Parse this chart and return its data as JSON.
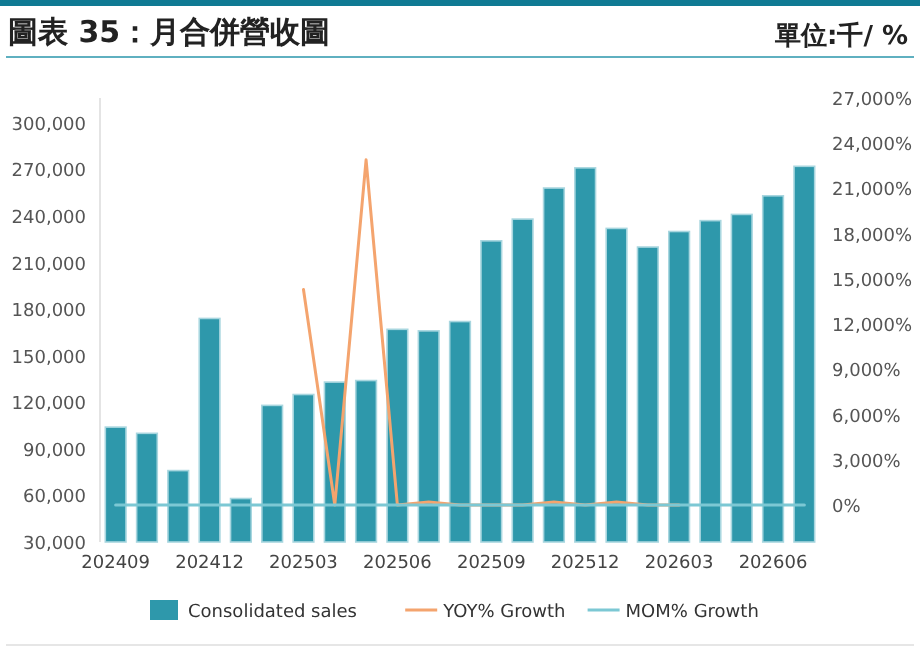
{
  "chart_data": {
    "type": "bar",
    "title": "圖表 35：月合併營收圖",
    "annotations": [
      "單位:千/ %"
    ],
    "categories": [
      "202409",
      null,
      null,
      "202412",
      null,
      null,
      "202503",
      null,
      null,
      "202506",
      null,
      null,
      "202509",
      null,
      null,
      "202512",
      null,
      null,
      "202603",
      null,
      null,
      "202606",
      null
    ],
    "series": [
      {
        "name": "Consolidated sales",
        "color": "#2e98ab",
        "values": [
          104000,
          100000,
          76000,
          174000,
          58000,
          118000,
          125000,
          133000,
          134000,
          167000,
          166000,
          172000,
          224000,
          238000,
          258000,
          271000,
          232000,
          220000,
          230000,
          237000,
          241000,
          253000,
          272000
        ]
      },
      {
        "name": "YOY% Growth",
        "type": "line",
        "axis": "y2",
        "color": "#f4a46e",
        "values": [
          null,
          null,
          null,
          null,
          null,
          null,
          14300,
          0,
          22900,
          0,
          200,
          0,
          0,
          0,
          200,
          0,
          200,
          0,
          0,
          null,
          null,
          null,
          null
        ]
      },
      {
        "name": "MOM% Growth",
        "type": "line",
        "axis": "y2",
        "color": "#7cc8d4",
        "values": [
          0,
          0,
          0,
          0,
          0,
          0,
          0,
          0,
          0,
          0,
          0,
          0,
          0,
          0,
          0,
          0,
          0,
          0,
          0,
          0,
          0,
          0,
          0
        ]
      }
    ],
    "ylim": [
      30000,
      316000
    ],
    "yticks": [
      {
        "value": 30000,
        "label": "30,000"
      },
      {
        "value": 60000,
        "label": "60,000"
      },
      {
        "value": 90000,
        "label": "90,000"
      },
      {
        "value": 120000,
        "label": "120,000"
      },
      {
        "value": 150000,
        "label": "150,000"
      },
      {
        "value": 180000,
        "label": "180,000"
      },
      {
        "value": 210000,
        "label": "210,000"
      },
      {
        "value": 240000,
        "label": "240,000"
      },
      {
        "value": 270000,
        "label": "270,000"
      },
      {
        "value": 300000,
        "label": "300,000"
      }
    ],
    "y2lim": [
      -2450,
      27000
    ],
    "y2ticks": [
      {
        "value": 0,
        "label": "0%"
      },
      {
        "value": 3000,
        "label": "3,000%"
      },
      {
        "value": 6000,
        "label": "6,000%"
      },
      {
        "value": 9000,
        "label": "9,000%"
      },
      {
        "value": 12000,
        "label": "12,000%"
      },
      {
        "value": 15000,
        "label": "15,000%"
      },
      {
        "value": 18000,
        "label": "18,000%"
      },
      {
        "value": 21000,
        "label": "21,000%"
      },
      {
        "value": 24000,
        "label": "24,000%"
      },
      {
        "value": 27000,
        "label": "27,000%"
      }
    ],
    "legend": "bottom",
    "grid": false
  }
}
